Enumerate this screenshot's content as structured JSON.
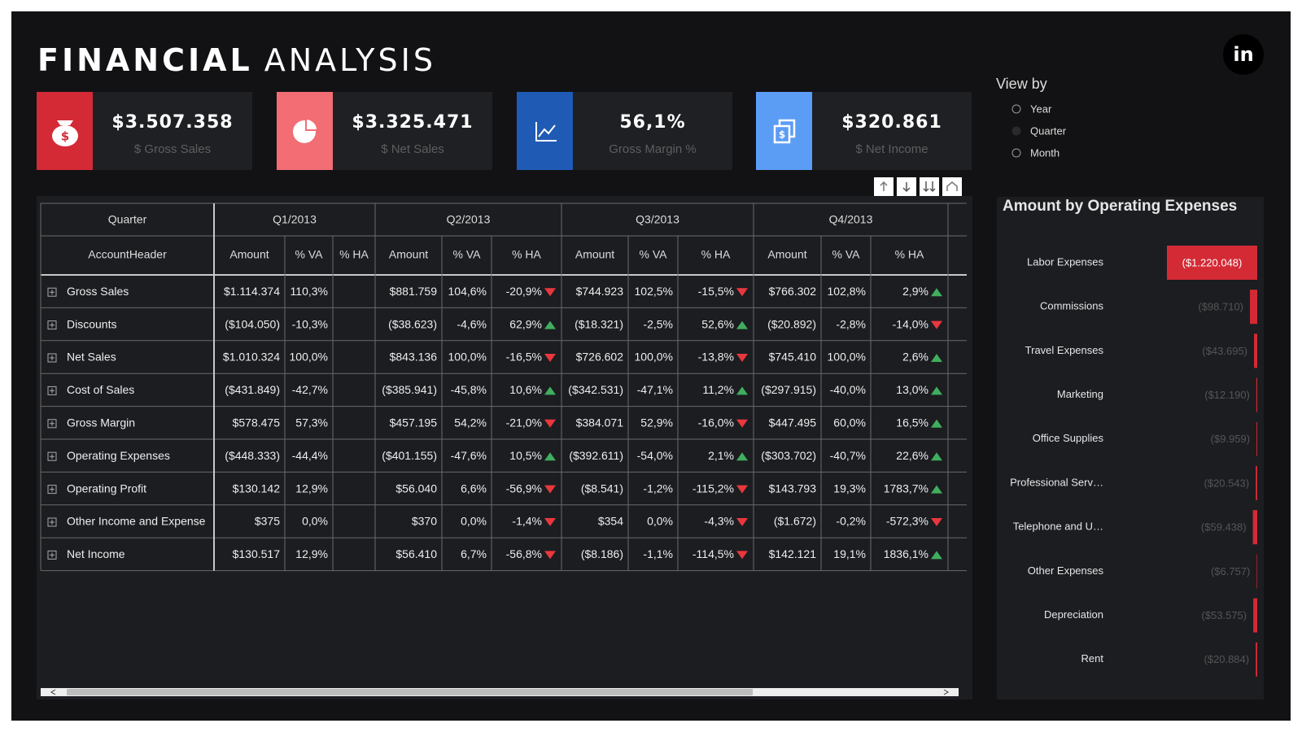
{
  "header": {
    "title_strong": "FINANCIAL",
    "title_light": "ANALYSIS",
    "linkedin": "in"
  },
  "kpis": [
    {
      "value": "$3.507.358",
      "label": "$ Gross Sales"
    },
    {
      "value": "$3.325.471",
      "label": "$ Net Sales"
    },
    {
      "value": "56,1%",
      "label": "Gross Margin %"
    },
    {
      "value": "$320.861",
      "label": "$ Net Income"
    }
  ],
  "view_by": {
    "title": "View by",
    "options": [
      "Year",
      "Quarter",
      "Month"
    ]
  },
  "table": {
    "header_row_1": [
      "Quarter",
      "Q1/2013",
      "Q2/2013",
      "Q3/2013",
      "Q4/2013"
    ],
    "header_row_2": [
      "AccountHeader",
      "Amount",
      "% VA",
      "% HA",
      "Amount",
      "% VA",
      "% HA",
      "Amount",
      "% VA",
      "% HA",
      "Amount",
      "% VA",
      "% HA"
    ],
    "rows": [
      [
        "Gross Sales",
        "$1.114.374",
        "110,3%",
        null,
        "$881.759",
        "104,6%",
        "-20,9%",
        "$744.923",
        "102,5%",
        "-15,5%",
        "$766.302",
        "102,8%",
        "2,9%"
      ],
      [
        "Discounts",
        "($104.050)",
        "-10,3%",
        null,
        "($38.623)",
        "-4,6%",
        "62,9%",
        "($18.321)",
        "-2,5%",
        "52,6%",
        "($20.892)",
        "-2,8%",
        "-14,0%"
      ],
      [
        "Net Sales",
        "$1.010.324",
        "100,0%",
        null,
        "$843.136",
        "100,0%",
        "-16,5%",
        "$726.602",
        "100,0%",
        "-13,8%",
        "$745.410",
        "100,0%",
        "2,6%"
      ],
      [
        "Cost of Sales",
        "($431.849)",
        "-42,7%",
        null,
        "($385.941)",
        "-45,8%",
        "10,6%",
        "($342.531)",
        "-47,1%",
        "11,2%",
        "($297.915)",
        "-40,0%",
        "13,0%"
      ],
      [
        "Gross Margin",
        "$578.475",
        "57,3%",
        null,
        "$457.195",
        "54,2%",
        "-21,0%",
        "$384.071",
        "52,9%",
        "-16,0%",
        "$447.495",
        "60,0%",
        "16,5%"
      ],
      [
        "Operating Expenses",
        "($448.333)",
        "-44,4%",
        null,
        "($401.155)",
        "-47,6%",
        "10,5%",
        "($392.611)",
        "-54,0%",
        "2,1%",
        "($303.702)",
        "-40,7%",
        "22,6%"
      ],
      [
        "Operating Profit",
        "$130.142",
        "12,9%",
        null,
        "$56.040",
        "6,6%",
        "-56,9%",
        "($8.541)",
        "-1,2%",
        "-115,2%",
        "$143.793",
        "19,3%",
        "1783,7%"
      ],
      [
        "Other Income and Expense",
        "$375",
        "0,0%",
        null,
        "$370",
        "0,0%",
        "-1,4%",
        "$354",
        "0,0%",
        "-4,3%",
        "($1.672)",
        "-0,2%",
        "-572,3%"
      ],
      [
        "Net Income",
        "$130.517",
        "12,9%",
        null,
        "$56.410",
        "6,7%",
        "-56,8%",
        "($8.186)",
        "-1,1%",
        "-114,5%",
        "$142.121",
        "19,1%",
        "1836,1%"
      ]
    ]
  },
  "chart_data": {
    "type": "bar",
    "orientation": "horizontal",
    "title": "Amount by Operating Expenses",
    "categories": [
      "Labor Expenses",
      "Commissions",
      "Travel Expenses",
      "Marketing",
      "Office Supplies",
      "Professional Serv…",
      "Telephone and U…",
      "Other Expenses",
      "Depreciation",
      "Rent"
    ],
    "values": [
      -1220048,
      -98710,
      -43695,
      -12190,
      -9959,
      -20543,
      -59438,
      -6757,
      -53575,
      -20884
    ],
    "value_labels": [
      "($1.220.048)",
      "($98.710)",
      "($43.695)",
      "($12.190)",
      "($9.959)",
      "($20.543)",
      "($59.438)",
      "($6.757)",
      "($53.575)",
      "($20.884)"
    ],
    "color": "#d42a35"
  }
}
